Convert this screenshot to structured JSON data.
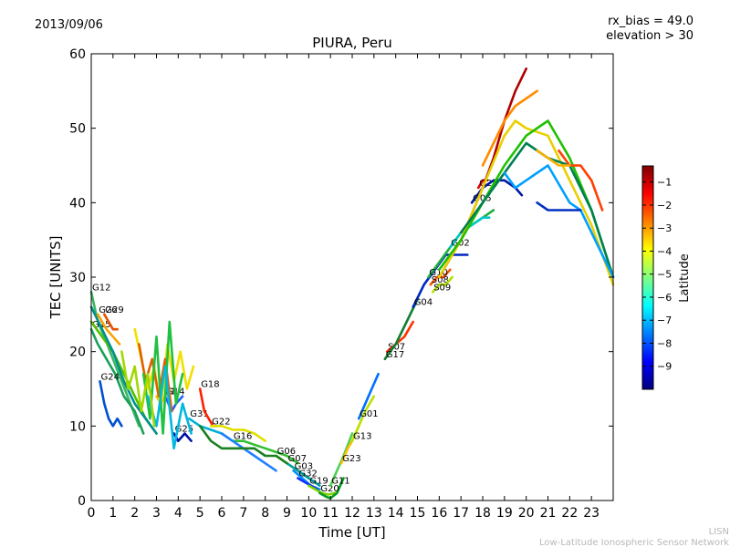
{
  "header": {
    "date": "2013/09/06",
    "rx_bias": "rx_bias = 49.0",
    "elevation": "elevation > 30"
  },
  "footer": {
    "line1": "LISN",
    "line2": "Low-Latitude Ionospheric Sensor Network"
  },
  "chart_data": {
    "type": "scatter",
    "title": "PIURA, Peru",
    "xlabel": "Time [UT]",
    "ylabel": "TEC [UNITS]",
    "xlim": [
      0,
      24
    ],
    "ylim": [
      0,
      60
    ],
    "xticks": [
      0,
      1,
      2,
      3,
      4,
      5,
      6,
      7,
      8,
      9,
      10,
      11,
      12,
      13,
      14,
      15,
      16,
      17,
      18,
      19,
      20,
      21,
      22,
      23
    ],
    "yticks": [
      0,
      10,
      20,
      30,
      40,
      50,
      60
    ],
    "grid": false,
    "colorbar": {
      "label": "Latitude",
      "range": [
        -10,
        -0.3
      ],
      "ticks": [
        -1,
        -2,
        -3,
        -4,
        -5,
        -6,
        -7,
        -8,
        -9
      ],
      "colormap": [
        "#00007f",
        "#0000ff",
        "#007fff",
        "#00ffff",
        "#7fff7f",
        "#ffff00",
        "#ff7f00",
        "#ff0000",
        "#7f0000"
      ]
    },
    "series": [
      {
        "name": "G12",
        "color": "#39b860",
        "x": [
          0,
          0.3,
          0.6,
          1.0,
          1.4,
          1.8,
          2.2
        ],
        "y": [
          28,
          24,
          22,
          19,
          16,
          13,
          10
        ]
      },
      {
        "name": "G15",
        "color": "#1aa05a",
        "x": [
          0,
          0.3,
          0.7,
          1.1,
          1.5,
          2.0,
          2.4
        ],
        "y": [
          23,
          21,
          19,
          17,
          14,
          12,
          9
        ]
      },
      {
        "name": "G26",
        "color": "#f7a400",
        "x": [
          0.3,
          0.5,
          0.7,
          1.0,
          1.3
        ],
        "y": [
          25,
          24,
          23,
          22,
          21
        ]
      },
      {
        "name": "G29",
        "color": "#e85000",
        "x": [
          0.6,
          0.8,
          1.0,
          1.2
        ],
        "y": [
          25,
          24,
          23,
          23
        ]
      },
      {
        "name": "G24",
        "color": "#0050d0",
        "x": [
          0.4,
          0.6,
          0.8,
          1.0,
          1.2,
          1.4
        ],
        "y": [
          16,
          13,
          11,
          10,
          11,
          10
        ]
      },
      {
        "name": "G21",
        "color": "#f0c000",
        "x": [
          3.0,
          3.2,
          3.4,
          3.6
        ],
        "y": [
          14,
          13,
          14,
          15
        ]
      },
      {
        "name": "G14",
        "color": "#2060ff",
        "x": [
          3.4,
          3.7,
          3.9,
          4.2
        ],
        "y": [
          14,
          12,
          13,
          14
        ]
      },
      {
        "name": "G25",
        "color": "#0010a0",
        "x": [
          3.8,
          4.0,
          4.3,
          4.6
        ],
        "y": [
          9,
          8,
          9,
          8
        ]
      },
      {
        "name": "G31",
        "color": "#00b0d8",
        "x": [
          4.5,
          5.0,
          5.5,
          6.0,
          6.5
        ],
        "y": [
          11,
          10,
          9.5,
          9,
          8
        ]
      },
      {
        "name": "G18",
        "color": "#ff2000",
        "x": [
          5.0,
          5.2,
          5.4,
          5.6,
          5.8
        ],
        "y": [
          15,
          12,
          11,
          10,
          10
        ]
      },
      {
        "name": "G22",
        "color": "#e0e000",
        "x": [
          5.5,
          6.0,
          6.5,
          7.0,
          7.5,
          8.0
        ],
        "y": [
          10,
          10,
          9.5,
          9.5,
          9,
          8
        ]
      },
      {
        "name": "G16",
        "color": "#30c030",
        "x": [
          6.5,
          7.0,
          7.5,
          8.0,
          8.5,
          9.0,
          9.5
        ],
        "y": [
          8,
          8,
          7.5,
          7,
          6.5,
          6,
          5
        ]
      },
      {
        "name": "G06",
        "color": "#a0e000",
        "x": [
          8.5,
          9.0,
          9.5,
          10.0
        ],
        "y": [
          6,
          5,
          4,
          3
        ]
      },
      {
        "name": "G07",
        "color": "#00a0a0",
        "x": [
          9.0,
          9.5,
          10.0,
          10.5
        ],
        "y": [
          5,
          4,
          3,
          2
        ]
      },
      {
        "name": "G03",
        "color": "#0090ff",
        "x": [
          9.3,
          9.7,
          10.1,
          10.5
        ],
        "y": [
          4,
          3,
          2,
          1.5
        ]
      },
      {
        "name": "G32",
        "color": "#1030ff",
        "x": [
          9.5,
          9.8,
          10.1,
          10.4
        ],
        "y": [
          3,
          2.5,
          2,
          1.5
        ]
      },
      {
        "name": "G19",
        "color": "#80d000",
        "x": [
          10.0,
          10.3,
          10.6,
          10.9,
          11.2
        ],
        "y": [
          2,
          1.5,
          1,
          0.8,
          1
        ]
      },
      {
        "name": "G20",
        "color": "#00a020",
        "x": [
          10.5,
          10.8,
          11.0,
          11.3,
          11.6
        ],
        "y": [
          1,
          0.5,
          0.3,
          1,
          3
        ]
      },
      {
        "name": "G11",
        "color": "#50d050",
        "x": [
          11.0,
          11.3,
          11.6,
          12.0
        ],
        "y": [
          2,
          4,
          6,
          9
        ]
      },
      {
        "name": "G23",
        "color": "#fac000",
        "x": [
          11.5,
          11.8,
          12.0,
          12.3
        ],
        "y": [
          5,
          7,
          8,
          10
        ]
      },
      {
        "name": "G13",
        "color": "#c0e000",
        "x": [
          12.0,
          12.3,
          12.6,
          13.0
        ],
        "y": [
          8,
          10,
          12,
          14
        ]
      },
      {
        "name": "G01",
        "color": "#0070ff",
        "x": [
          12.3,
          12.6,
          12.9,
          13.2
        ],
        "y": [
          11,
          13,
          15,
          17
        ]
      },
      {
        "name": "S07",
        "color": "#ff3000",
        "x": [
          13.6,
          14.0,
          14.4,
          14.8
        ],
        "y": [
          20,
          21,
          22,
          24
        ]
      },
      {
        "name": "G17",
        "color": "#108030",
        "x": [
          13.5,
          14.0,
          14.5,
          15.0
        ],
        "y": [
          19,
          21,
          24,
          27
        ]
      },
      {
        "name": "S08",
        "color": "#ff5000",
        "x": [
          15.6,
          15.9,
          16.2,
          16.5
        ],
        "y": [
          29,
          30,
          30,
          31
        ]
      },
      {
        "name": "S09",
        "color": "#b0e000",
        "x": [
          15.7,
          16.0,
          16.3,
          16.6
        ],
        "y": [
          28,
          29,
          29,
          30
        ]
      },
      {
        "name": "G04",
        "color": "#0028c0",
        "x": [
          14.8,
          15.3,
          15.8,
          16.3,
          16.8,
          17.3
        ],
        "y": [
          26,
          29,
          31,
          33,
          33,
          33
        ]
      },
      {
        "name": "G10",
        "color": "#20b040",
        "x": [
          15.5,
          16.0,
          16.5,
          17.0,
          17.5,
          18.0,
          18.5
        ],
        "y": [
          30,
          32,
          34,
          36,
          37,
          38,
          39
        ]
      },
      {
        "name": "G02",
        "color": "#00c8c8",
        "x": [
          16.5,
          17.0,
          17.5,
          18.0,
          18.3
        ],
        "y": [
          34,
          36,
          37,
          38,
          38
        ]
      },
      {
        "name": "G28",
        "color": "#e00000",
        "x": [
          17.8,
          18.0,
          18.2
        ],
        "y": [
          42,
          43,
          43
        ]
      },
      {
        "name": "G05",
        "color": "#0018a0",
        "x": [
          17.5,
          18.0,
          18.5,
          19.0,
          19.5,
          19.8
        ],
        "y": [
          40,
          42,
          43,
          43,
          42,
          41
        ]
      },
      {
        "name": "",
        "color": "#b00000",
        "x": [
          16.0,
          17.0,
          18.0,
          18.5,
          19.0,
          19.5,
          20.0
        ],
        "y": [
          30,
          35,
          42,
          46,
          51,
          55,
          58
        ]
      },
      {
        "name": "",
        "color": "#e8d000",
        "x": [
          16.0,
          17.0,
          18.0,
          19.0,
          19.5,
          20.0,
          21.0,
          22.0,
          23.0,
          24.0
        ],
        "y": [
          30,
          35,
          42,
          49,
          51,
          50,
          49,
          43,
          37,
          29
        ]
      },
      {
        "name": "",
        "color": "#ff8c00",
        "x": [
          18.0,
          19.0,
          19.5,
          20.0,
          20.5
        ],
        "y": [
          45,
          51,
          53,
          54,
          55
        ]
      },
      {
        "name": "",
        "color": "#20c000",
        "x": [
          16.0,
          17.0,
          18.0,
          19.0,
          20.0,
          21.0,
          22.0,
          23.0,
          24.0
        ],
        "y": [
          31,
          35,
          40,
          45,
          49,
          51,
          46,
          39,
          30
        ]
      },
      {
        "name": "",
        "color": "#008050",
        "x": [
          17.0,
          18.0,
          19.0,
          20.0,
          21.0,
          22.0,
          23.0,
          24.0
        ],
        "y": [
          36,
          40,
          44,
          48,
          46,
          45,
          39,
          30
        ]
      },
      {
        "name": "",
        "color": "#00a0ff",
        "x": [
          19.0,
          19.5,
          20.0,
          21.0,
          22.0,
          22.5,
          23.0,
          24.0
        ],
        "y": [
          44,
          42,
          43,
          45,
          40,
          39,
          36,
          30
        ]
      },
      {
        "name": "",
        "color": "#0030c0",
        "x": [
          20.5,
          21.0,
          22.0,
          22.5
        ],
        "y": [
          40,
          39,
          39,
          39
        ]
      },
      {
        "name": "",
        "color": "#ff4000",
        "x": [
          21.5,
          22.0,
          22.5,
          23.0,
          23.5
        ],
        "y": [
          47,
          45,
          45,
          43,
          39
        ]
      },
      {
        "name": "",
        "color": "#f8b000",
        "x": [
          20.5,
          21.0,
          21.5,
          22.0
        ],
        "y": [
          47,
          46,
          45,
          45
        ]
      },
      {
        "name": "",
        "color": "#50c000",
        "x": [
          0,
          0.5,
          1.0,
          1.5,
          2.0,
          2.5,
          3.0
        ],
        "y": [
          24,
          22,
          20,
          17,
          14,
          11,
          9
        ]
      },
      {
        "name": "",
        "color": "#009090",
        "x": [
          0,
          0.5,
          1.0,
          1.5,
          2.0,
          2.5,
          3.0
        ],
        "y": [
          26,
          23,
          20,
          16,
          13,
          11,
          9
        ]
      },
      {
        "name": "",
        "color": "#2080ff",
        "x": [
          6.0,
          6.5,
          7.0,
          7.5,
          8.0,
          8.5
        ],
        "y": [
          9,
          8,
          7,
          6,
          5,
          4
        ]
      },
      {
        "name": "",
        "color": "#1a8020",
        "x": [
          5.0,
          5.5,
          6.0,
          6.5,
          7.0,
          7.5,
          8.0,
          8.5,
          9.0
        ],
        "y": [
          10,
          8,
          7,
          7,
          7,
          7,
          6,
          6,
          5
        ]
      },
      {
        "name": "",
        "color": "#f0e000",
        "x": [
          2.0,
          2.3,
          2.6,
          2.9,
          3.2,
          3.5,
          3.8,
          4.1,
          4.4,
          4.7
        ],
        "y": [
          23,
          19,
          15,
          18,
          12,
          21,
          16,
          20,
          15,
          18
        ]
      },
      {
        "name": "",
        "color": "#e06000",
        "x": [
          2.2,
          2.5,
          2.8,
          3.1,
          3.4,
          3.7
        ],
        "y": [
          21,
          16,
          19,
          14,
          19,
          12
        ]
      },
      {
        "name": "",
        "color": "#20c040",
        "x": [
          2.4,
          2.7,
          3.0,
          3.3,
          3.6,
          3.9,
          4.2
        ],
        "y": [
          17,
          11,
          22,
          9,
          24,
          13,
          17
        ]
      },
      {
        "name": "",
        "color": "#00b8e0",
        "x": [
          2.6,
          3.0,
          3.4,
          3.8,
          4.2,
          4.6
        ],
        "y": [
          14,
          10,
          18,
          7,
          13,
          9
        ]
      },
      {
        "name": "",
        "color": "#a0d800",
        "x": [
          1.4,
          1.7,
          2.0,
          2.3,
          2.6,
          2.9
        ],
        "y": [
          20,
          15,
          18,
          12,
          17,
          10
        ]
      }
    ]
  }
}
